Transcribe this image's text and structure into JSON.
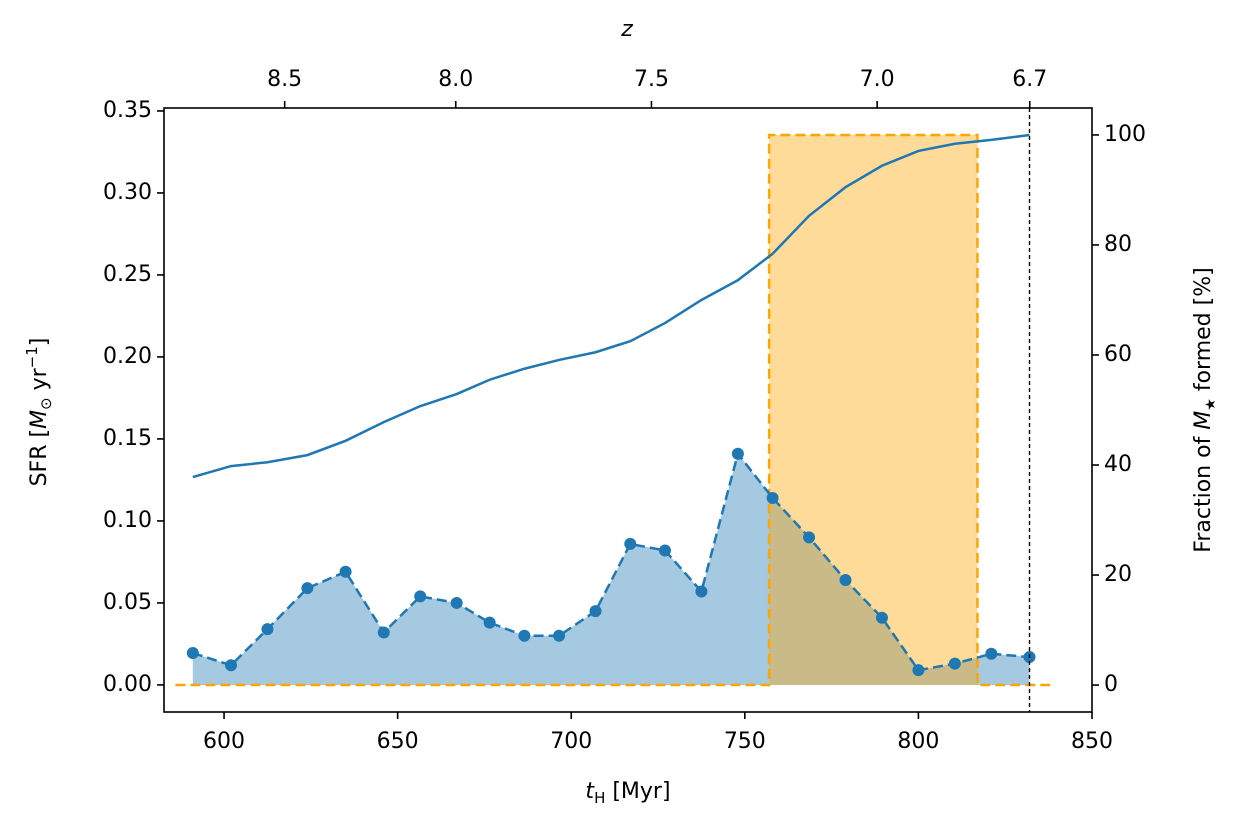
{
  "chart_data": {
    "type": "line",
    "x": [
      591,
      602,
      612.5,
      624,
      635,
      646,
      656.5,
      667,
      676.5,
      686.5,
      696.5,
      707,
      717,
      727,
      737.5,
      748,
      758,
      768.5,
      779,
      789.5,
      800,
      810.5,
      821,
      832
    ],
    "series": [
      {
        "color": "#1f77b4",
        "linestyle": "dashed",
        "marker": "o",
        "fill": true,
        "values": [
          0.0195,
          0.012,
          0.034,
          0.059,
          0.069,
          0.032,
          0.054,
          0.05,
          0.038,
          0.03,
          0.03,
          0.045,
          0.086,
          0.082,
          0.057,
          0.141,
          0.114,
          0.09,
          0.064,
          0.041,
          0.009,
          0.013,
          0.019,
          0.017
        ]
      },
      {
        "color": "#1f77b4",
        "linestyle": "solid",
        "axis": "y2",
        "values": [
          37.8,
          39.8,
          40.5,
          41.8,
          44.4,
          47.8,
          50.7,
          52.9,
          55.5,
          57.5,
          59.1,
          60.5,
          62.5,
          65.8,
          70,
          73.6,
          78.4,
          85.3,
          90.5,
          94.4,
          97.1,
          98.4,
          99.1,
          100
        ]
      }
    ],
    "window": {
      "color": "#ffa500",
      "axis": "y2",
      "x": [
        586,
        757,
        757,
        817,
        817,
        838
      ],
      "values": [
        0,
        0,
        100,
        100,
        0,
        0
      ]
    },
    "vline": 832,
    "xlim": [
      582.7,
      850
    ],
    "ylim": [
      -0.0165,
      0.3518
    ],
    "y2lim": [
      -4.9,
      104.9
    ],
    "xticks": [
      600,
      650,
      700,
      750,
      800,
      850
    ],
    "yticks": [
      {
        "value": 0,
        "label": "0.00"
      },
      {
        "value": 0.05,
        "label": "0.05"
      },
      {
        "value": 0.1,
        "label": "0.10"
      },
      {
        "value": 0.15,
        "label": "0.15"
      },
      {
        "value": 0.2,
        "label": "0.20"
      },
      {
        "value": 0.25,
        "label": "0.25"
      },
      {
        "value": 0.3,
        "label": "0.30"
      },
      {
        "value": 0.35,
        "label": "0.35"
      }
    ],
    "y2ticks": [
      0,
      20,
      40,
      60,
      80,
      100
    ],
    "x2ticks": [
      8.5,
      {
        "value": 8,
        "label": "8.0"
      },
      7.5,
      {
        "value": 7,
        "label": "7.0"
      },
      6.7
    ],
    "x2label": "z",
    "xlabel": [
      "t",
      "H",
      "  [Myr]"
    ],
    "ylabel": [
      "SFR  [",
      "M",
      "⊙",
      " yr",
      "−1",
      "]"
    ],
    "y2label": [
      "Fraction of ",
      "M",
      "★",
      " formed  [%]"
    ]
  }
}
